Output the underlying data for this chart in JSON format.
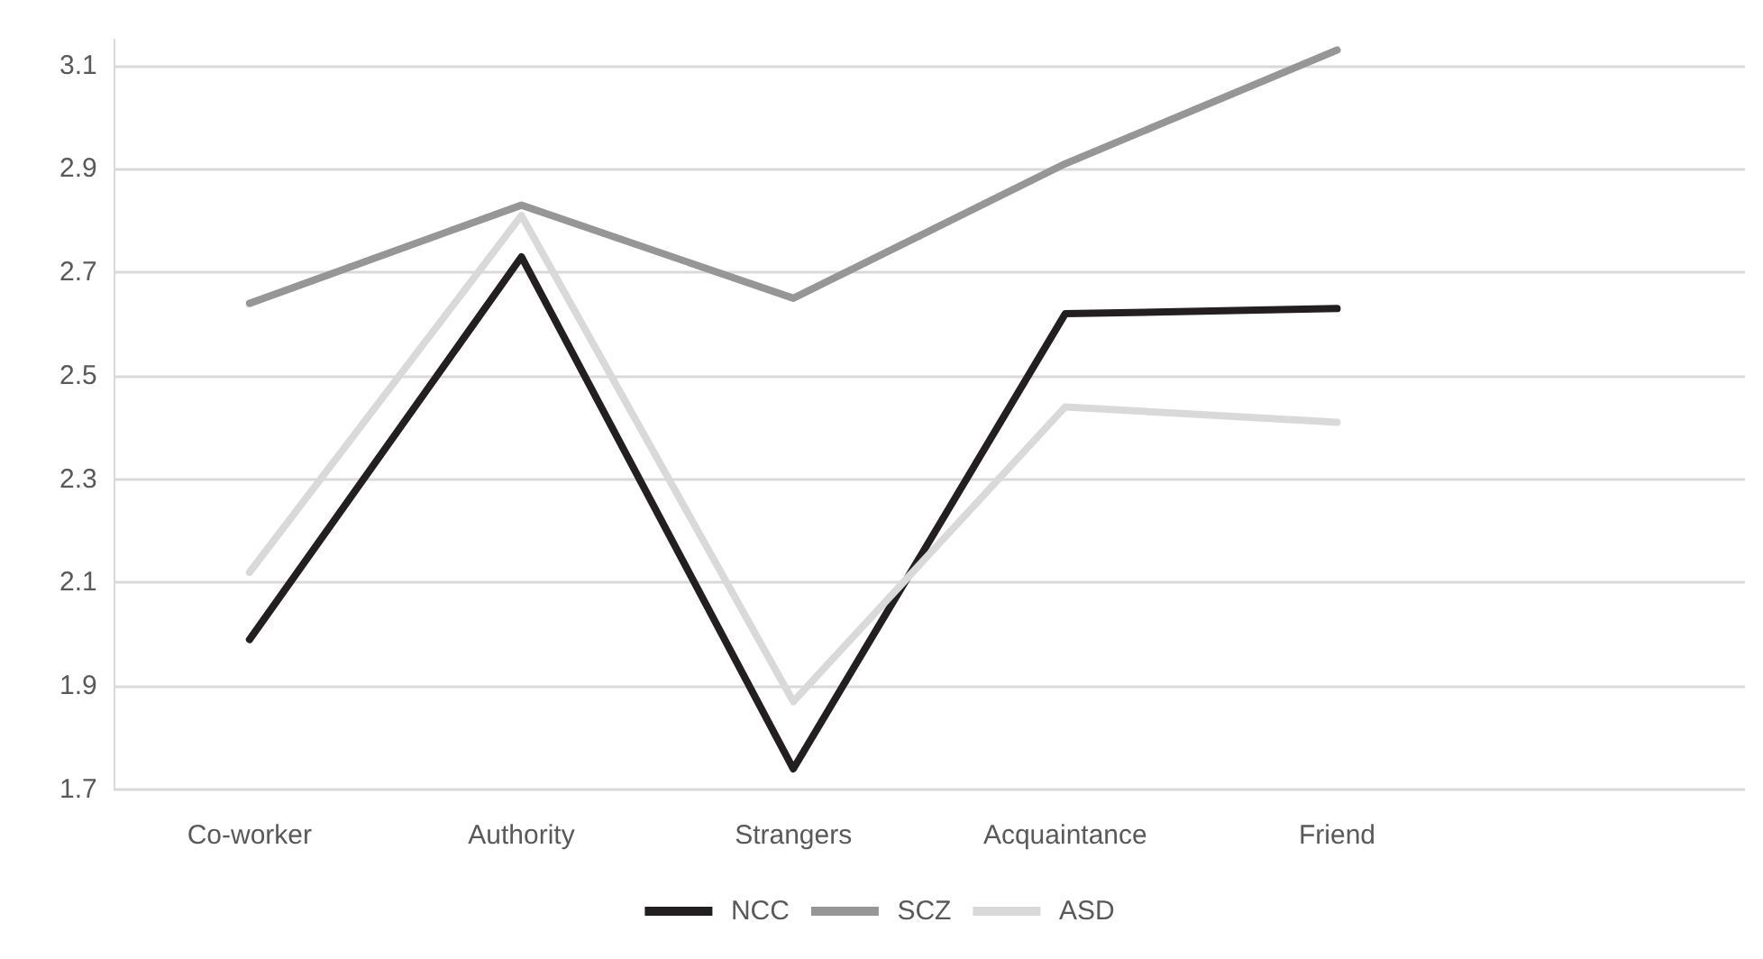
{
  "chart_data": {
    "type": "line",
    "categories": [
      "Co-worker",
      "Authority",
      "Strangers",
      "Acquaintance",
      "Friend",
      null
    ],
    "series": [
      {
        "name": "NCC",
        "color": "#231f20",
        "values": [
          1.99,
          2.73,
          1.74,
          2.62,
          2.63,
          null
        ]
      },
      {
        "name": "SCZ",
        "color": "#969696",
        "values": [
          2.64,
          2.83,
          2.65,
          2.91,
          3.13,
          null
        ]
      },
      {
        "name": "ASD",
        "color": "#d9d9d9",
        "values": [
          2.12,
          2.81,
          1.87,
          2.44,
          2.41,
          null
        ]
      }
    ],
    "ylim": [
      1.7,
      3.15
    ],
    "yticks": [
      1.7,
      1.9,
      2.1,
      2.3,
      2.5,
      2.7,
      2.9,
      3.1
    ],
    "grid": "y",
    "legend": "bottom",
    "marker": "none",
    "line_style": "solid"
  }
}
